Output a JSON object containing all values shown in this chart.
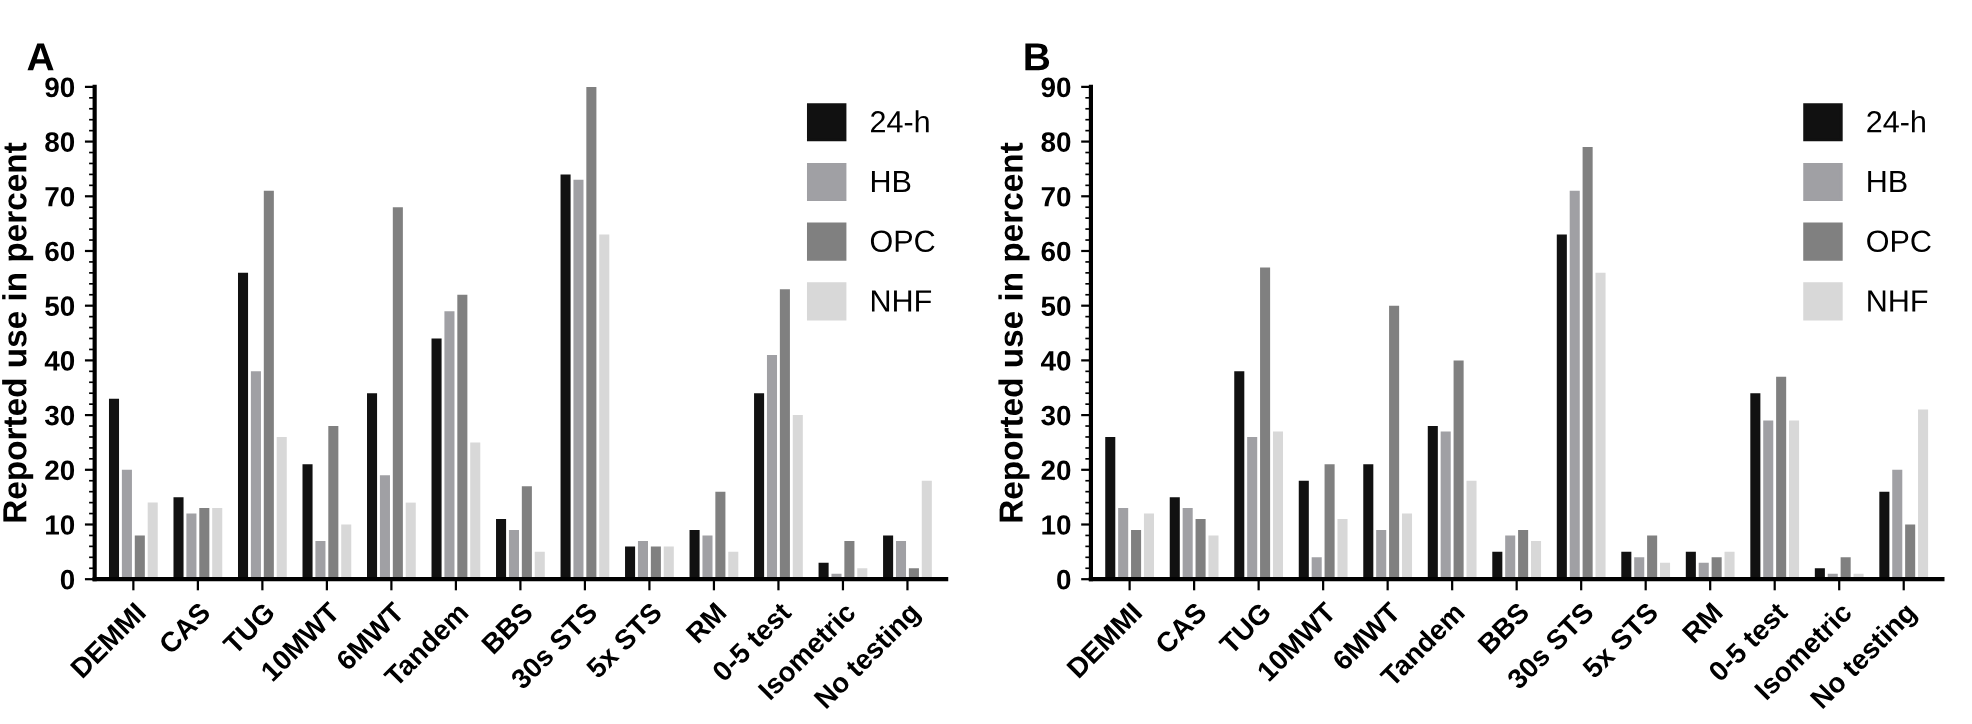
{
  "chart_data": [
    {
      "type": "bar",
      "title": "A",
      "ylabel": "Reported use in percent",
      "categories": [
        "DEMMI",
        "CAS",
        "TUG",
        "10MWT",
        "6MWT",
        "Tandem",
        "BBS",
        "30s STS",
        "5x STS",
        "RM",
        "0-5 test",
        "Isometric",
        "No testing"
      ],
      "series": [
        {
          "name": "24-h",
          "color": "#111111",
          "values": [
            33,
            15,
            56,
            21,
            34,
            44,
            11,
            74,
            6,
            9,
            34,
            3,
            8
          ]
        },
        {
          "name": "HB",
          "color": "#a0a0a4",
          "values": [
            20,
            12,
            38,
            7,
            19,
            49,
            9,
            73,
            7,
            8,
            41,
            1,
            7
          ]
        },
        {
          "name": "OPC",
          "color": "#808080",
          "values": [
            8,
            13,
            71,
            28,
            68,
            52,
            17,
            90,
            6,
            16,
            53,
            7,
            2
          ]
        },
        {
          "name": "NHF",
          "color": "#d8d8d8",
          "values": [
            14,
            13,
            26,
            10,
            14,
            25,
            5,
            63,
            6,
            5,
            30,
            2,
            18
          ]
        }
      ],
      "ylim": [
        0,
        90
      ],
      "yticks": [
        0,
        10,
        20,
        30,
        40,
        50,
        60,
        70,
        80,
        90
      ],
      "grid": false,
      "legend": "top right"
    },
    {
      "type": "bar",
      "title": "B",
      "ylabel": "Reported use in percent",
      "categories": [
        "DEMMI",
        "CAS",
        "TUG",
        "10MWT",
        "6MWT",
        "Tandem",
        "BBS",
        "30s STS",
        "5x STS",
        "RM",
        "0-5 test",
        "Isometric",
        "No testing"
      ],
      "series": [
        {
          "name": "24-h",
          "color": "#111111",
          "values": [
            26,
            15,
            38,
            18,
            21,
            28,
            5,
            63,
            5,
            5,
            34,
            2,
            16
          ]
        },
        {
          "name": "HB",
          "color": "#a0a0a4",
          "values": [
            13,
            13,
            26,
            4,
            9,
            27,
            8,
            71,
            4,
            3,
            29,
            1,
            20
          ]
        },
        {
          "name": "OPC",
          "color": "#808080",
          "values": [
            9,
            11,
            57,
            21,
            50,
            40,
            9,
            79,
            8,
            4,
            37,
            4,
            10
          ]
        },
        {
          "name": "NHF",
          "color": "#d8d8d8",
          "values": [
            12,
            8,
            27,
            11,
            12,
            18,
            7,
            56,
            3,
            5,
            29,
            1,
            31
          ]
        }
      ],
      "ylim": [
        0,
        90
      ],
      "yticks": [
        0,
        10,
        20,
        30,
        40,
        50,
        60,
        70,
        80,
        90
      ],
      "grid": false,
      "legend": "top right"
    }
  ]
}
